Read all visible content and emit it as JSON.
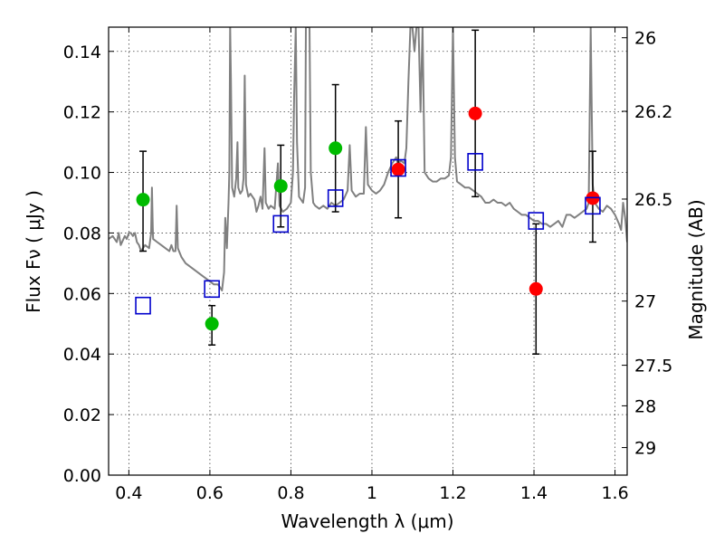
{
  "chart_data": {
    "type": "scatter",
    "xlabel": "Wavelength  λ (μm)",
    "ylabel": "Flux  Fν  ( μJy )",
    "y2label": "Magnitude (AB)",
    "xlim": [
      0.35,
      1.63
    ],
    "ylim": [
      0.0,
      0.148
    ],
    "x_ticks": [
      0.4,
      0.6,
      0.8,
      1.0,
      1.2,
      1.4,
      1.6
    ],
    "x_tick_labels": [
      "0.4",
      "0.6",
      "0.8",
      "1",
      "1.2",
      "1.4",
      "1.6"
    ],
    "y_ticks": [
      0.0,
      0.02,
      0.04,
      0.06,
      0.08,
      0.1,
      0.12,
      0.14
    ],
    "y_tick_labels": [
      "0.00",
      "0.02",
      "0.04",
      "0.06",
      "0.08",
      "0.10",
      "0.12",
      "0.14"
    ],
    "y2_ticks": [
      {
        "label": "26",
        "flux": 0.1445
      },
      {
        "label": "26.2",
        "flux": 0.1202
      },
      {
        "label": "26.5",
        "flux": 0.0912
      },
      {
        "label": "27",
        "flux": 0.0575
      },
      {
        "label": "27.5",
        "flux": 0.0363
      },
      {
        "label": "28",
        "flux": 0.0229
      },
      {
        "label": "29",
        "flux": 0.0091
      }
    ],
    "grid": true,
    "series": [
      {
        "kind": "line",
        "color": "#808080",
        "points": [
          [
            0.35,
            0.078
          ],
          [
            0.36,
            0.079
          ],
          [
            0.37,
            0.077
          ],
          [
            0.375,
            0.08
          ],
          [
            0.38,
            0.076
          ],
          [
            0.39,
            0.079
          ],
          [
            0.395,
            0.078
          ],
          [
            0.4,
            0.08
          ],
          [
            0.405,
            0.08
          ],
          [
            0.41,
            0.079
          ],
          [
            0.415,
            0.08
          ],
          [
            0.42,
            0.077
          ],
          [
            0.425,
            0.076
          ],
          [
            0.43,
            0.074
          ],
          [
            0.44,
            0.076
          ],
          [
            0.45,
            0.075
          ],
          [
            0.455,
            0.08
          ],
          [
            0.457,
            0.095
          ],
          [
            0.459,
            0.082
          ],
          [
            0.46,
            0.078
          ],
          [
            0.47,
            0.077
          ],
          [
            0.48,
            0.076
          ],
          [
            0.49,
            0.075
          ],
          [
            0.5,
            0.074
          ],
          [
            0.505,
            0.076
          ],
          [
            0.51,
            0.074
          ],
          [
            0.515,
            0.074
          ],
          [
            0.518,
            0.089
          ],
          [
            0.521,
            0.075
          ],
          [
            0.53,
            0.072
          ],
          [
            0.54,
            0.07
          ],
          [
            0.55,
            0.069
          ],
          [
            0.56,
            0.068
          ],
          [
            0.57,
            0.067
          ],
          [
            0.58,
            0.066
          ],
          [
            0.59,
            0.065
          ],
          [
            0.6,
            0.064
          ],
          [
            0.61,
            0.063
          ],
          [
            0.62,
            0.063
          ],
          [
            0.625,
            0.062
          ],
          [
            0.63,
            0.061
          ],
          [
            0.635,
            0.067
          ],
          [
            0.638,
            0.085
          ],
          [
            0.642,
            0.075
          ],
          [
            0.646,
            0.09
          ],
          [
            0.648,
            0.1
          ],
          [
            0.65,
            0.148
          ],
          [
            0.652,
            0.13
          ],
          [
            0.655,
            0.095
          ],
          [
            0.66,
            0.092
          ],
          [
            0.665,
            0.098
          ],
          [
            0.668,
            0.11
          ],
          [
            0.67,
            0.095
          ],
          [
            0.675,
            0.093
          ],
          [
            0.68,
            0.094
          ],
          [
            0.683,
            0.098
          ],
          [
            0.686,
            0.132
          ],
          [
            0.689,
            0.096
          ],
          [
            0.695,
            0.092
          ],
          [
            0.7,
            0.093
          ],
          [
            0.71,
            0.091
          ],
          [
            0.715,
            0.087
          ],
          [
            0.72,
            0.089
          ],
          [
            0.725,
            0.092
          ],
          [
            0.73,
            0.088
          ],
          [
            0.735,
            0.108
          ],
          [
            0.738,
            0.09
          ],
          [
            0.745,
            0.088
          ],
          [
            0.75,
            0.089
          ],
          [
            0.76,
            0.088
          ],
          [
            0.768,
            0.103
          ],
          [
            0.772,
            0.089
          ],
          [
            0.78,
            0.087
          ],
          [
            0.79,
            0.088
          ],
          [
            0.8,
            0.09
          ],
          [
            0.805,
            0.1
          ],
          [
            0.808,
            0.125
          ],
          [
            0.812,
            0.148
          ],
          [
            0.815,
            0.11
          ],
          [
            0.82,
            0.092
          ],
          [
            0.83,
            0.09
          ],
          [
            0.835,
            0.095
          ],
          [
            0.837,
            0.148
          ],
          [
            0.84,
            0.148
          ],
          [
            0.843,
            0.148
          ],
          [
            0.846,
            0.148
          ],
          [
            0.849,
            0.1
          ],
          [
            0.855,
            0.09
          ],
          [
            0.86,
            0.089
          ],
          [
            0.87,
            0.088
          ],
          [
            0.88,
            0.089
          ],
          [
            0.89,
            0.088
          ],
          [
            0.9,
            0.09
          ],
          [
            0.91,
            0.089
          ],
          [
            0.92,
            0.09
          ],
          [
            0.93,
            0.091
          ],
          [
            0.94,
            0.094
          ],
          [
            0.945,
            0.109
          ],
          [
            0.95,
            0.094
          ],
          [
            0.96,
            0.092
          ],
          [
            0.97,
            0.093
          ],
          [
            0.98,
            0.093
          ],
          [
            0.985,
            0.115
          ],
          [
            0.99,
            0.096
          ],
          [
            1.0,
            0.094
          ],
          [
            1.01,
            0.093
          ],
          [
            1.02,
            0.094
          ],
          [
            1.03,
            0.096
          ],
          [
            1.04,
            0.1
          ],
          [
            1.05,
            0.103
          ],
          [
            1.06,
            0.105
          ],
          [
            1.065,
            0.102
          ],
          [
            1.07,
            0.104
          ],
          [
            1.08,
            0.103
          ],
          [
            1.085,
            0.108
          ],
          [
            1.09,
            0.13
          ],
          [
            1.095,
            0.148
          ],
          [
            1.1,
            0.148
          ],
          [
            1.105,
            0.14
          ],
          [
            1.11,
            0.148
          ],
          [
            1.115,
            0.148
          ],
          [
            1.12,
            0.12
          ],
          [
            1.125,
            0.148
          ],
          [
            1.13,
            0.1
          ],
          [
            1.14,
            0.098
          ],
          [
            1.15,
            0.097
          ],
          [
            1.16,
            0.097
          ],
          [
            1.17,
            0.098
          ],
          [
            1.18,
            0.098
          ],
          [
            1.19,
            0.099
          ],
          [
            1.195,
            0.105
          ],
          [
            1.2,
            0.148
          ],
          [
            1.205,
            0.105
          ],
          [
            1.21,
            0.097
          ],
          [
            1.22,
            0.096
          ],
          [
            1.23,
            0.095
          ],
          [
            1.24,
            0.095
          ],
          [
            1.25,
            0.094
          ],
          [
            1.26,
            0.093
          ],
          [
            1.27,
            0.092
          ],
          [
            1.28,
            0.09
          ],
          [
            1.29,
            0.09
          ],
          [
            1.3,
            0.091
          ],
          [
            1.31,
            0.09
          ],
          [
            1.32,
            0.09
          ],
          [
            1.33,
            0.089
          ],
          [
            1.34,
            0.09
          ],
          [
            1.35,
            0.088
          ],
          [
            1.36,
            0.087
          ],
          [
            1.37,
            0.086
          ],
          [
            1.38,
            0.086
          ],
          [
            1.39,
            0.085
          ],
          [
            1.4,
            0.084
          ],
          [
            1.41,
            0.084
          ],
          [
            1.42,
            0.083
          ],
          [
            1.43,
            0.083
          ],
          [
            1.44,
            0.082
          ],
          [
            1.45,
            0.083
          ],
          [
            1.46,
            0.084
          ],
          [
            1.47,
            0.082
          ],
          [
            1.48,
            0.086
          ],
          [
            1.49,
            0.086
          ],
          [
            1.5,
            0.085
          ],
          [
            1.51,
            0.086
          ],
          [
            1.52,
            0.087
          ],
          [
            1.53,
            0.088
          ],
          [
            1.535,
            0.09
          ],
          [
            1.54,
            0.148
          ],
          [
            1.545,
            0.096
          ],
          [
            1.55,
            0.09
          ],
          [
            1.56,
            0.088
          ],
          [
            1.57,
            0.087
          ],
          [
            1.58,
            0.089
          ],
          [
            1.59,
            0.088
          ],
          [
            1.6,
            0.086
          ],
          [
            1.61,
            0.083
          ],
          [
            1.615,
            0.081
          ],
          [
            1.62,
            0.09
          ],
          [
            1.625,
            0.085
          ],
          [
            1.63,
            0.077
          ]
        ]
      },
      {
        "kind": "points",
        "marker": "circle",
        "color": "#00bb00",
        "points": [
          {
            "x": 0.435,
            "y": 0.091,
            "err": [
              0.074,
              0.107
            ]
          },
          {
            "x": 0.605,
            "y": 0.05,
            "err": [
              0.043,
              0.056
            ]
          },
          {
            "x": 0.775,
            "y": 0.0955,
            "err": [
              0.082,
              0.109
            ]
          },
          {
            "x": 0.91,
            "y": 0.108,
            "err": [
              0.087,
              0.129
            ]
          }
        ]
      },
      {
        "kind": "points",
        "marker": "circle",
        "color": "#ff0000",
        "points": [
          {
            "x": 1.065,
            "y": 0.101,
            "err": [
              0.085,
              0.117
            ]
          },
          {
            "x": 1.255,
            "y": 0.1195,
            "err": [
              0.092,
              0.147
            ]
          },
          {
            "x": 1.405,
            "y": 0.0615,
            "err": [
              0.04,
              0.083
            ]
          },
          {
            "x": 1.545,
            "y": 0.0915,
            "err": [
              0.077,
              0.107
            ]
          }
        ]
      },
      {
        "kind": "points",
        "marker": "open-square",
        "color": "#0000cc",
        "points": [
          {
            "x": 0.435,
            "y": 0.056
          },
          {
            "x": 0.605,
            "y": 0.0615
          },
          {
            "x": 0.775,
            "y": 0.083
          },
          {
            "x": 0.91,
            "y": 0.0915
          },
          {
            "x": 1.065,
            "y": 0.1015
          },
          {
            "x": 1.255,
            "y": 0.1035
          },
          {
            "x": 1.405,
            "y": 0.084
          },
          {
            "x": 1.545,
            "y": 0.089
          }
        ]
      }
    ]
  }
}
